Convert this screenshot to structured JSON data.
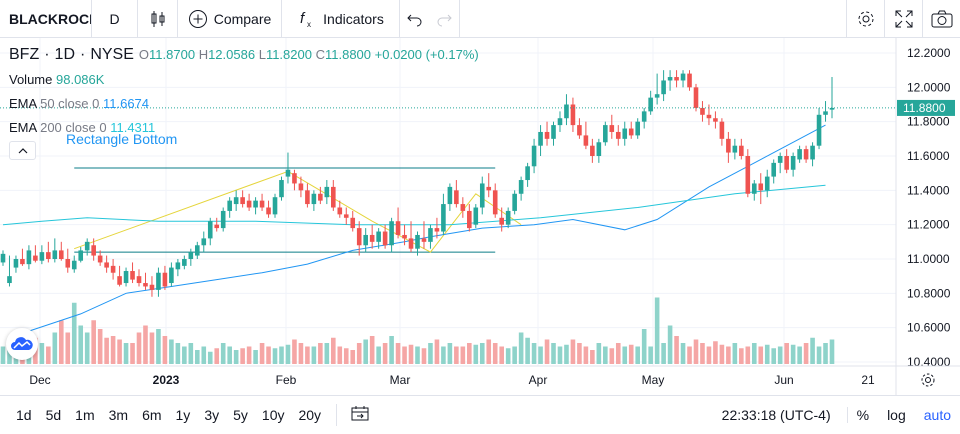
{
  "toolbar": {
    "symbol": "BLACKROCK",
    "interval": "D",
    "compare_label": "Compare",
    "indicators_label": "Indicators"
  },
  "legend": {
    "symbol": "BFZ",
    "interval": "1D",
    "exchange": "NYSE",
    "o_label": "O",
    "o": "11.8700",
    "h_label": "H",
    "h": "12.0586",
    "l_label": "L",
    "l": "11.8200",
    "c_label": "C",
    "c": "11.8800",
    "change": "+0.0200 (+0.17%)"
  },
  "indicators": {
    "volume": {
      "name": "Volume",
      "value": "98.086K"
    },
    "ema50": {
      "name": "EMA",
      "params": "50 close 0",
      "value": "11.6674"
    },
    "ema200": {
      "name": "EMA",
      "params": "200 close 0",
      "value": "11.4311"
    }
  },
  "drawing_label": "Rectangle Bottom",
  "last_price_label": "11.8800",
  "bottom": {
    "ranges": [
      "1d",
      "5d",
      "1m",
      "3m",
      "6m",
      "1y",
      "3y",
      "5y",
      "10y",
      "20y"
    ],
    "clock": "22:33:18 (UTC-4)",
    "percent": "%",
    "log": "log",
    "auto": "auto"
  },
  "colors": {
    "up": "#26a69a",
    "down": "#ef5350",
    "vol_up": "#8ed3ca",
    "vol_down": "#f5a6a5",
    "ema50": "#2196f3",
    "ema200": "#26c6da",
    "wedge": "#e5d53b",
    "rect": "#0b7c88",
    "accent": "#2962ff"
  },
  "chart_data": {
    "type": "candlestick",
    "y_ticks": [
      "12.2000",
      "12.0000",
      "11.8000",
      "11.6000",
      "11.4000",
      "11.2000",
      "11.0000",
      "10.8000",
      "10.6000",
      "10.4000"
    ],
    "ylim": [
      10.4,
      12.2
    ],
    "x_ticks": [
      {
        "label": "Dec",
        "bold": false
      },
      {
        "label": "2023",
        "bold": true
      },
      {
        "label": "Feb",
        "bold": false
      },
      {
        "label": "Mar",
        "bold": false
      },
      {
        "label": "Apr",
        "bold": false
      },
      {
        "label": "May",
        "bold": false
      },
      {
        "label": "Jun",
        "bold": false
      },
      {
        "label": "21",
        "bold": false
      }
    ],
    "last_price": 11.88,
    "series_ohlc": [
      [
        10.98,
        11.05,
        10.96,
        11.03
      ],
      [
        10.86,
        11.02,
        10.84,
        10.9
      ],
      [
        10.95,
        11.02,
        10.92,
        11.0
      ],
      [
        11.0,
        11.06,
        10.96,
        10.97
      ],
      [
        10.97,
        11.08,
        10.94,
        11.05
      ],
      [
        11.02,
        11.08,
        10.98,
        10.99
      ],
      [
        10.99,
        11.08,
        10.97,
        11.04
      ],
      [
        11.04,
        11.1,
        10.98,
        11.0
      ],
      [
        11.0,
        11.12,
        10.98,
        11.05
      ],
      [
        11.05,
        11.1,
        10.99,
        11.0
      ],
      [
        11.0,
        11.06,
        10.92,
        10.95
      ],
      [
        10.94,
        11.02,
        10.92,
        10.99
      ],
      [
        10.99,
        11.07,
        10.98,
        11.05
      ],
      [
        11.05,
        11.12,
        11.02,
        11.1
      ],
      [
        11.08,
        11.12,
        10.99,
        11.02
      ],
      [
        11.02,
        11.05,
        10.96,
        10.98
      ],
      [
        10.98,
        11.02,
        10.92,
        10.95
      ],
      [
        10.96,
        11.0,
        10.88,
        10.92
      ],
      [
        10.9,
        10.96,
        10.84,
        10.85
      ],
      [
        10.86,
        10.95,
        10.84,
        10.93
      ],
      [
        10.93,
        10.98,
        10.86,
        10.88
      ],
      [
        10.9,
        10.94,
        10.84,
        10.86
      ],
      [
        10.86,
        10.92,
        10.82,
        10.84
      ],
      [
        10.85,
        10.9,
        10.78,
        10.82
      ],
      [
        10.82,
        10.95,
        10.78,
        10.92
      ],
      [
        10.92,
        10.96,
        10.82,
        10.84
      ],
      [
        10.86,
        10.98,
        10.84,
        10.95
      ],
      [
        10.94,
        11.0,
        10.9,
        10.98
      ],
      [
        10.96,
        11.02,
        10.94,
        11.0
      ],
      [
        11.0,
        11.06,
        10.96,
        11.04
      ],
      [
        11.02,
        11.1,
        11.0,
        11.08
      ],
      [
        11.08,
        11.16,
        11.04,
        11.12
      ],
      [
        11.12,
        11.24,
        11.08,
        11.22
      ],
      [
        11.2,
        11.24,
        11.16,
        11.18
      ],
      [
        11.18,
        11.3,
        11.16,
        11.28
      ],
      [
        11.28,
        11.36,
        11.24,
        11.34
      ],
      [
        11.32,
        11.4,
        11.28,
        11.36
      ],
      [
        11.36,
        11.4,
        11.3,
        11.32
      ],
      [
        11.34,
        11.38,
        11.28,
        11.3
      ],
      [
        11.3,
        11.36,
        11.26,
        11.34
      ],
      [
        11.34,
        11.38,
        11.28,
        11.3
      ],
      [
        11.3,
        11.34,
        11.24,
        11.26
      ],
      [
        11.26,
        11.38,
        11.24,
        11.36
      ],
      [
        11.36,
        11.48,
        11.34,
        11.46
      ],
      [
        11.48,
        11.62,
        11.44,
        11.52
      ],
      [
        11.5,
        11.52,
        11.4,
        11.44
      ],
      [
        11.44,
        11.48,
        11.36,
        11.4
      ],
      [
        11.4,
        11.44,
        11.3,
        11.32
      ],
      [
        11.32,
        11.4,
        11.28,
        11.38
      ],
      [
        11.38,
        11.42,
        11.32,
        11.34
      ],
      [
        11.36,
        11.46,
        11.32,
        11.42
      ],
      [
        11.42,
        11.46,
        11.28,
        11.3
      ],
      [
        11.3,
        11.34,
        11.24,
        11.26
      ],
      [
        11.26,
        11.3,
        11.2,
        11.24
      ],
      [
        11.24,
        11.28,
        11.16,
        11.18
      ],
      [
        11.18,
        11.22,
        11.02,
        11.08
      ],
      [
        11.08,
        11.18,
        11.04,
        11.14
      ],
      [
        11.14,
        11.2,
        11.06,
        11.1
      ],
      [
        11.1,
        11.18,
        11.06,
        11.16
      ],
      [
        11.16,
        11.2,
        11.06,
        11.08
      ],
      [
        11.08,
        11.24,
        11.04,
        11.22
      ],
      [
        11.22,
        11.3,
        11.12,
        11.14
      ],
      [
        11.14,
        11.2,
        11.08,
        11.12
      ],
      [
        11.12,
        11.22,
        11.04,
        11.06
      ],
      [
        11.06,
        11.16,
        11.02,
        11.14
      ],
      [
        11.12,
        11.22,
        11.06,
        11.1
      ],
      [
        11.1,
        11.2,
        11.06,
        11.18
      ],
      [
        11.18,
        11.24,
        11.12,
        11.16
      ],
      [
        11.16,
        11.38,
        11.14,
        11.32
      ],
      [
        11.32,
        11.44,
        11.28,
        11.42
      ],
      [
        11.4,
        11.46,
        11.3,
        11.32
      ],
      [
        11.32,
        11.36,
        11.24,
        11.28
      ],
      [
        11.28,
        11.32,
        11.16,
        11.18
      ],
      [
        11.2,
        11.32,
        11.18,
        11.3
      ],
      [
        11.3,
        11.48,
        11.26,
        11.44
      ],
      [
        11.42,
        11.5,
        11.36,
        11.4
      ],
      [
        11.4,
        11.44,
        11.24,
        11.26
      ],
      [
        11.24,
        11.3,
        11.16,
        11.2
      ],
      [
        11.2,
        11.3,
        11.18,
        11.28
      ],
      [
        11.28,
        11.4,
        11.26,
        11.38
      ],
      [
        11.38,
        11.48,
        11.34,
        11.46
      ],
      [
        11.46,
        11.56,
        11.42,
        11.54
      ],
      [
        11.54,
        11.7,
        11.5,
        11.66
      ],
      [
        11.66,
        11.78,
        11.6,
        11.74
      ],
      [
        11.74,
        11.8,
        11.66,
        11.7
      ],
      [
        11.7,
        11.8,
        11.66,
        11.78
      ],
      [
        11.78,
        11.86,
        11.74,
        11.82
      ],
      [
        11.82,
        11.96,
        11.78,
        11.9
      ],
      [
        11.9,
        11.94,
        11.74,
        11.78
      ],
      [
        11.78,
        11.82,
        11.7,
        11.72
      ],
      [
        11.72,
        11.8,
        11.64,
        11.66
      ],
      [
        11.66,
        11.7,
        11.56,
        11.6
      ],
      [
        11.6,
        11.7,
        11.56,
        11.68
      ],
      [
        11.68,
        11.8,
        11.66,
        11.78
      ],
      [
        11.78,
        11.84,
        11.7,
        11.74
      ],
      [
        11.74,
        11.78,
        11.66,
        11.7
      ],
      [
        11.7,
        11.8,
        11.66,
        11.76
      ],
      [
        11.76,
        11.8,
        11.7,
        11.72
      ],
      [
        11.72,
        11.82,
        11.7,
        11.8
      ],
      [
        11.8,
        11.88,
        11.76,
        11.86
      ],
      [
        11.86,
        11.98,
        11.84,
        11.94
      ],
      [
        11.94,
        12.08,
        11.9,
        11.96
      ],
      [
        11.96,
        12.1,
        11.92,
        12.04
      ],
      [
        12.04,
        12.1,
        11.98,
        12.06
      ],
      [
        12.06,
        12.1,
        12.0,
        12.04
      ],
      [
        12.04,
        12.1,
        12.0,
        12.08
      ],
      [
        12.08,
        12.1,
        11.98,
        12.0
      ],
      [
        12.0,
        12.02,
        11.86,
        11.88
      ],
      [
        11.88,
        11.92,
        11.8,
        11.84
      ],
      [
        11.84,
        11.9,
        11.78,
        11.82
      ],
      [
        11.82,
        11.86,
        11.76,
        11.8
      ],
      [
        11.8,
        11.82,
        11.66,
        11.7
      ],
      [
        11.7,
        11.74,
        11.56,
        11.62
      ],
      [
        11.62,
        11.7,
        11.58,
        11.66
      ],
      [
        11.66,
        11.7,
        11.58,
        11.6
      ],
      [
        11.6,
        11.64,
        11.36,
        11.38
      ],
      [
        11.38,
        11.46,
        11.34,
        11.44
      ],
      [
        11.44,
        11.5,
        11.32,
        11.4
      ],
      [
        11.4,
        11.52,
        11.36,
        11.48
      ],
      [
        11.48,
        11.58,
        11.44,
        11.56
      ],
      [
        11.56,
        11.62,
        11.5,
        11.6
      ],
      [
        11.6,
        11.64,
        11.5,
        11.52
      ],
      [
        11.52,
        11.62,
        11.48,
        11.6
      ],
      [
        11.58,
        11.66,
        11.56,
        11.64
      ],
      [
        11.64,
        11.66,
        11.56,
        11.58
      ],
      [
        11.58,
        11.68,
        11.54,
        11.66
      ],
      [
        11.66,
        11.88,
        11.64,
        11.84
      ],
      [
        11.84,
        11.92,
        11.8,
        11.86
      ],
      [
        11.87,
        12.06,
        11.82,
        11.88
      ]
    ],
    "volumes": [
      0.1,
      0.12,
      0.09,
      0.12,
      0.08,
      0.15,
      0.12,
      0.1,
      0.18,
      0.25,
      0.18,
      0.35,
      0.22,
      0.18,
      0.25,
      0.2,
      0.15,
      0.16,
      0.14,
      0.12,
      0.12,
      0.18,
      0.22,
      0.18,
      0.2,
      0.16,
      0.14,
      0.12,
      0.1,
      0.12,
      0.08,
      0.1,
      0.07,
      0.09,
      0.12,
      0.1,
      0.08,
      0.09,
      0.1,
      0.08,
      0.12,
      0.1,
      0.09,
      0.1,
      0.11,
      0.14,
      0.12,
      0.1,
      0.1,
      0.12,
      0.12,
      0.15,
      0.1,
      0.09,
      0.08,
      0.12,
      0.14,
      0.16,
      0.1,
      0.12,
      0.16,
      0.12,
      0.1,
      0.11,
      0.1,
      0.09,
      0.12,
      0.14,
      0.1,
      0.12,
      0.1,
      0.1,
      0.12,
      0.11,
      0.12,
      0.14,
      0.12,
      0.1,
      0.09,
      0.1,
      0.18,
      0.15,
      0.12,
      0.1,
      0.14,
      0.12,
      0.1,
      0.11,
      0.14,
      0.12,
      0.1,
      0.08,
      0.12,
      0.1,
      0.09,
      0.12,
      0.1,
      0.11,
      0.1,
      0.2,
      0.1,
      0.38,
      0.12,
      0.22,
      0.16,
      0.12,
      0.1,
      0.14,
      0.12,
      0.1,
      0.13,
      0.11,
      0.1,
      0.12,
      0.09,
      0.1,
      0.12,
      0.1,
      0.11,
      0.09,
      0.1,
      0.12,
      0.11,
      0.1,
      0.12,
      0.15,
      0.1,
      0.12,
      0.14,
      0.08
    ],
    "ema50": [
      [
        3,
        11.78
      ],
      [
        30,
        11.56
      ],
      [
        50,
        11.42
      ],
      [
        70,
        11.23
      ],
      [
        83,
        11.17
      ],
      [
        102,
        11.23
      ],
      [
        118,
        11.2
      ],
      [
        140,
        11.18
      ],
      [
        160,
        11.13
      ],
      [
        170,
        11.1
      ],
      [
        190,
        11.05
      ],
      [
        208,
        10.97
      ],
      [
        226,
        10.92
      ],
      [
        244,
        10.88
      ],
      [
        262,
        10.84
      ],
      [
        280,
        10.8
      ],
      [
        300,
        10.68
      ],
      [
        320,
        10.58
      ]
    ],
    "ema200": [
      [
        3,
        11.43
      ],
      [
        40,
        11.38
      ],
      [
        80,
        11.3
      ],
      [
        120,
        11.24
      ],
      [
        160,
        11.2
      ],
      [
        200,
        11.2
      ],
      [
        240,
        11.22
      ],
      [
        280,
        11.22
      ],
      [
        310,
        11.24
      ],
      [
        330,
        11.22
      ],
      [
        345,
        11.2
      ]
    ]
  }
}
